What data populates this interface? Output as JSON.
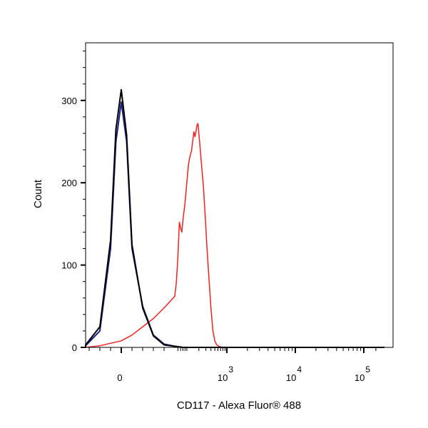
{
  "chart_data": {
    "type": "line",
    "title": "",
    "xlabel": "CD117 - Alexa Fluor® 488",
    "ylabel": "Count",
    "x_scale": "biexponential",
    "xlim": [
      -100,
      200000
    ],
    "ylim": [
      0,
      370
    ],
    "grid": false,
    "legend": "none",
    "y_ticks": [
      0,
      100,
      200,
      300
    ],
    "x_tick_labels": [
      {
        "value": 0,
        "base": "0",
        "exp": ""
      },
      {
        "value": 1000,
        "base": "10",
        "exp": "3"
      },
      {
        "value": 10000,
        "base": "10",
        "exp": "4"
      },
      {
        "value": 100000,
        "base": "10",
        "exp": "5"
      }
    ],
    "series": [
      {
        "color": "#ee2222",
        "points": [
          [
            -100,
            0
          ],
          [
            -40,
            0
          ],
          [
            -20,
            2
          ],
          [
            0,
            8
          ],
          [
            10,
            15
          ],
          [
            20,
            25
          ],
          [
            30,
            35
          ],
          [
            40,
            48
          ],
          [
            50,
            62
          ],
          [
            55,
            80
          ],
          [
            60,
            110
          ],
          [
            65,
            152
          ],
          [
            70,
            145
          ],
          [
            75,
            140
          ],
          [
            80,
            155
          ],
          [
            90,
            175
          ],
          [
            100,
            200
          ],
          [
            110,
            222
          ],
          [
            120,
            232
          ],
          [
            130,
            238
          ],
          [
            140,
            250
          ],
          [
            150,
            262
          ],
          [
            160,
            256
          ],
          [
            170,
            262
          ],
          [
            180,
            270
          ],
          [
            190,
            272
          ],
          [
            200,
            260
          ],
          [
            210,
            248
          ],
          [
            230,
            225
          ],
          [
            260,
            195
          ],
          [
            290,
            158
          ],
          [
            320,
            120
          ],
          [
            360,
            82
          ],
          [
            400,
            48
          ],
          [
            450,
            20
          ],
          [
            500,
            8
          ],
          [
            560,
            3
          ],
          [
            650,
            1
          ],
          [
            800,
            0
          ],
          [
            200000,
            0
          ]
        ]
      },
      {
        "color": "#1a237e",
        "points": [
          [
            -100,
            0
          ],
          [
            -40,
            2
          ],
          [
            -20,
            20
          ],
          [
            -10,
            120
          ],
          [
            -5,
            250
          ],
          [
            0,
            298
          ],
          [
            5,
            250
          ],
          [
            10,
            120
          ],
          [
            20,
            50
          ],
          [
            30,
            15
          ],
          [
            40,
            4
          ],
          [
            55,
            1
          ],
          [
            80,
            0
          ],
          [
            200000,
            0
          ]
        ]
      },
      {
        "color": "#000000",
        "points": [
          [
            -100,
            0
          ],
          [
            -40,
            3
          ],
          [
            -20,
            25
          ],
          [
            -10,
            130
          ],
          [
            -5,
            265
          ],
          [
            0,
            313
          ],
          [
            5,
            258
          ],
          [
            10,
            125
          ],
          [
            20,
            48
          ],
          [
            30,
            14
          ],
          [
            40,
            3
          ],
          [
            55,
            1
          ],
          [
            80,
            0
          ],
          [
            200000,
            0
          ]
        ]
      }
    ]
  }
}
